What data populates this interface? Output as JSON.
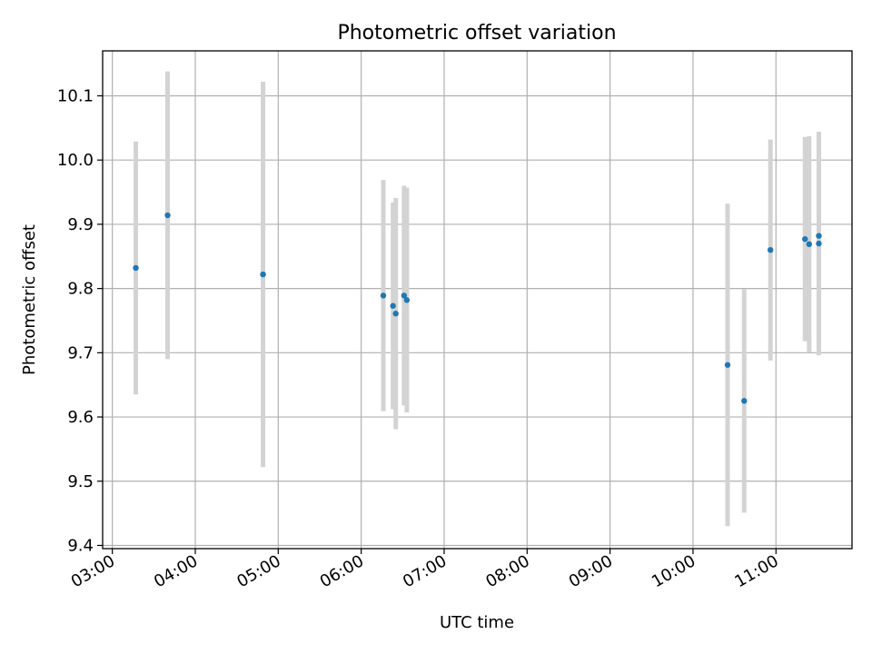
{
  "chart_data": {
    "type": "scatter",
    "title": "Photometric offset variation",
    "xlabel": "UTC time",
    "ylabel": "Photometric offset",
    "x_ticks": [
      "03:00",
      "04:00",
      "05:00",
      "06:00",
      "07:00",
      "08:00",
      "09:00",
      "10:00",
      "11:00"
    ],
    "y_ticks": [
      "9.4",
      "9.5",
      "9.6",
      "9.7",
      "9.8",
      "9.9",
      "10.0",
      "10.1"
    ],
    "xlim": [
      "02:53",
      "11:55"
    ],
    "ylim": [
      9.395,
      10.17
    ],
    "grid": true,
    "series": [
      {
        "marker_color": "#1f77b4",
        "errorbar_color": "#d3d3d3",
        "points": [
          {
            "x": "03:17",
            "y": 9.832,
            "err": 0.197
          },
          {
            "x": "03:40",
            "y": 9.914,
            "err": 0.224
          },
          {
            "x": "04:49",
            "y": 9.822,
            "err": 0.3
          },
          {
            "x": "06:16",
            "y": 9.789,
            "err": 0.18
          },
          {
            "x": "06:23",
            "y": 9.773,
            "err": 0.161
          },
          {
            "x": "06:25",
            "y": 9.761,
            "err": 0.18
          },
          {
            "x": "06:31",
            "y": 9.789,
            "err": 0.171
          },
          {
            "x": "06:33",
            "y": 9.782,
            "err": 0.175
          },
          {
            "x": "10:25",
            "y": 9.681,
            "err": 0.251
          },
          {
            "x": "10:37",
            "y": 9.625,
            "err": 0.174
          },
          {
            "x": "10:56",
            "y": 9.86,
            "err": 0.172
          },
          {
            "x": "11:21",
            "y": 9.877,
            "err": 0.159
          },
          {
            "x": "11:24",
            "y": 9.869,
            "err": 0.168
          },
          {
            "x": "11:31",
            "y": 9.882,
            "err": 0.162
          },
          {
            "x": "11:31",
            "y": 9.87,
            "err": 0.174
          }
        ]
      }
    ]
  }
}
